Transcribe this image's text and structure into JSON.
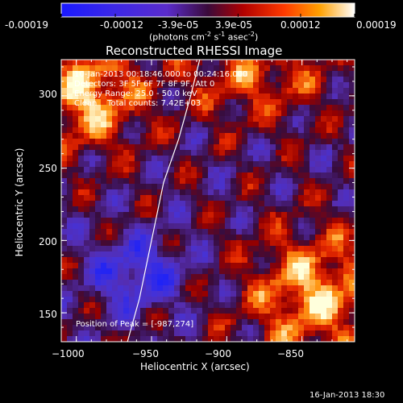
{
  "colorbar": {
    "tick_labels": [
      "-0.00019",
      "-0.00012",
      "-3.9e-05",
      "3.9e-05",
      "0.00012",
      "0.00019"
    ],
    "tick_values": [
      -0.00019,
      -0.00012,
      -3.9e-05,
      3.9e-05,
      0.00012,
      0.00019
    ],
    "units_line1": "(photons cm",
    "units_sup1": "-2",
    "units_line2": " s",
    "units_sup2": "-1",
    "units_line3": " asec",
    "units_sup3": "-2",
    "units_end": ")"
  },
  "annotations": {
    "line1": "10-Jan-2013 00:18:46.000 to 00:24:16.000",
    "line2": "Detectors: 3F 5F 6F 7F 8F 9F, Att 0",
    "line3": "Energy Range: 25.0 - 50.0 keV",
    "line4": "Clean    Total counts: 7.42E+03",
    "peak": "Position of Peak = [-987,274]"
  },
  "footer_timestamp": "16-Jan-2013 18:30",
  "chart_data": {
    "type": "heatmap",
    "title": "Reconstructed RHESSI Image",
    "xlabel": "Heliocentric X (arcsec)",
    "ylabel": "Heliocentric Y (arcsec)",
    "xlim": [
      -1010,
      -815
    ],
    "ylim": [
      130,
      325
    ],
    "x_ticks": [
      -1000,
      -950,
      -900,
      -850
    ],
    "x_tick_labels": [
      "−1000",
      "−950",
      "−900",
      "−850"
    ],
    "y_ticks": [
      150,
      200,
      250,
      300
    ],
    "y_tick_labels": [
      "150",
      "200",
      "250",
      "300"
    ],
    "colorscale_range": [
      -0.00019,
      0.00019
    ],
    "limb_curve": [
      [
        -966,
        130
      ],
      [
        -958,
        160
      ],
      [
        -950,
        200
      ],
      [
        -942,
        240
      ],
      [
        -932,
        270
      ],
      [
        -924,
        300
      ],
      [
        -918,
        325
      ]
    ]
  }
}
